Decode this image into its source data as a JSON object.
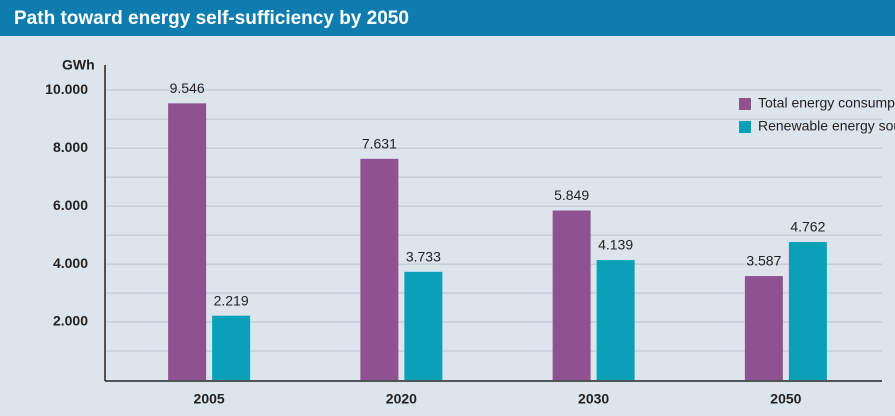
{
  "chart_data": {
    "type": "bar",
    "title": "Path toward energy self-sufficiency by 2050",
    "y_unit": "GWh",
    "categories": [
      "2005",
      "2020",
      "2030",
      "2050"
    ],
    "series": [
      {
        "name": "Total energy consumption",
        "color": "#8e5290",
        "values": [
          9546,
          7631,
          5849,
          3587
        ],
        "value_labels": [
          "9.546",
          "7.631",
          "5.849",
          "3.587"
        ]
      },
      {
        "name": "Renewable energy sources",
        "color": "#0aa0b8",
        "values": [
          2219,
          3733,
          4139,
          4762
        ],
        "value_labels": [
          "2.219",
          "3.733",
          "4.139",
          "4.762"
        ]
      }
    ],
    "ylim": [
      0,
      10800
    ],
    "yticks": [
      {
        "value": 2000,
        "label": "2.000"
      },
      {
        "value": 4000,
        "label": "4.000"
      },
      {
        "value": 6000,
        "label": "6.000"
      },
      {
        "value": 8000,
        "label": "8.000"
      },
      {
        "value": 10000,
        "label": "10.000"
      }
    ],
    "grid_yticks": [
      1000,
      2000,
      3000,
      4000,
      5000,
      6000,
      7000,
      8000,
      9000,
      10000
    ],
    "grid": true,
    "legend": "upper right"
  }
}
